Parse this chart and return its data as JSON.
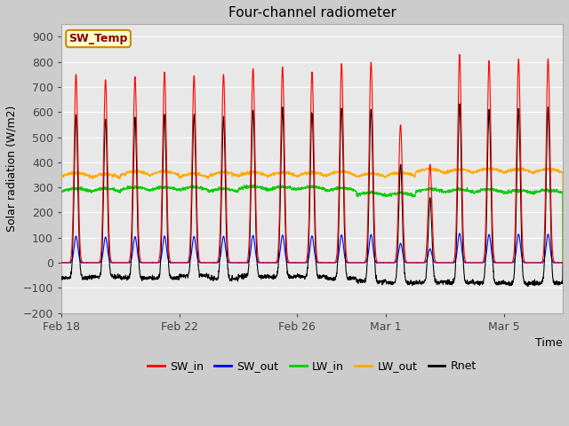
{
  "title": "Four-channel radiometer",
  "xlabel": "Time",
  "ylabel": "Solar radiation (W/m2)",
  "ylim": [
    -200,
    950
  ],
  "yticks": [
    -200,
    -100,
    0,
    100,
    200,
    300,
    400,
    500,
    600,
    700,
    800,
    900
  ],
  "fig_bg_color": "#cccccc",
  "plot_bg_color": "#e8e8e8",
  "grid_color": "#ffffff",
  "colors": {
    "SW_in": "#ff0000",
    "SW_out": "#0000ff",
    "LW_in": "#00cc00",
    "LW_out": "#ffaa00",
    "Rnet": "#000000"
  },
  "annotation_text": "SW_Temp",
  "annotation_bg": "#ffffcc",
  "annotation_border": "#cc8800",
  "annotation_text_color": "#880000",
  "x_tick_labels": [
    "Feb 18",
    "Feb 22",
    "Feb 26",
    "Mar 1",
    "Mar 5"
  ],
  "x_tick_positions": [
    0,
    4,
    8,
    11,
    15
  ],
  "n_days": 17
}
